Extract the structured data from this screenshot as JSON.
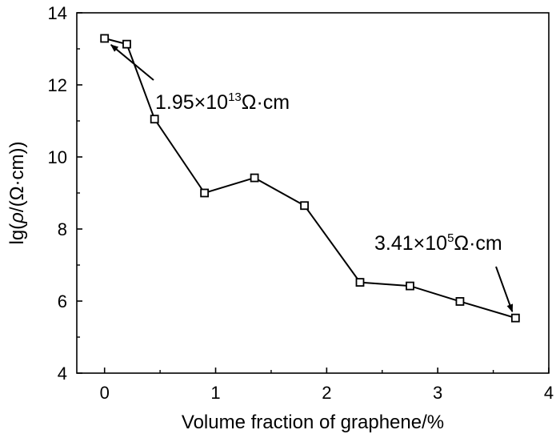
{
  "chart_data": {
    "type": "line",
    "title": "",
    "xlabel": "Volume fraction of graphene/%",
    "ylabel_parts": {
      "prefix": "lg(",
      "rho": "ρ",
      "suffix": "/(Ω·cm))"
    },
    "xlim": [
      -0.25,
      4
    ],
    "ylim": [
      4,
      14
    ],
    "x_ticks": [
      0,
      1,
      2,
      3,
      4
    ],
    "y_ticks": [
      4,
      6,
      8,
      10,
      12,
      14
    ],
    "grid": false,
    "marker": "open-square",
    "series": [
      {
        "x": [
          0,
          0.2,
          0.45,
          0.9,
          1.35,
          1.8,
          2.3,
          2.75,
          3.2,
          3.7
        ],
        "y": [
          13.29,
          13.13,
          11.05,
          9.0,
          9.42,
          8.65,
          6.52,
          6.42,
          5.99,
          5.53
        ]
      }
    ],
    "annotations": [
      {
        "base": "1.95×10",
        "exponent": "13",
        "unit": "Ω·cm",
        "target": {
          "x": 0,
          "y": 13.29
        }
      },
      {
        "base": "3.41×10",
        "exponent": "5",
        "unit": "Ω·cm",
        "target": {
          "x": 3.7,
          "y": 5.53
        }
      }
    ]
  }
}
